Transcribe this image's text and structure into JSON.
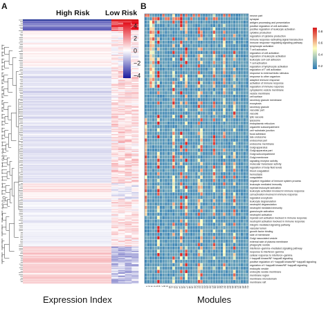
{
  "panelA": {
    "label": "A",
    "columns": [
      "High Risk",
      "Low Risk"
    ],
    "xlabel": "Expression Index",
    "colorbar_ticks": [
      "4",
      "2",
      "0",
      "−2",
      "−4"
    ],
    "colors": {
      "high": "#e3101c",
      "mid": "#ffffff",
      "low": "#1a1a9e"
    }
  },
  "panelB": {
    "label": "B",
    "xlabel": "Modules",
    "module_count": 41,
    "colorbar_ticks": [
      "0.8",
      "0.6",
      "0.4",
      "0.2"
    ],
    "colors": {
      "high": "#d7191c",
      "mid": "#ffffbf",
      "low": "#2c7bb6"
    }
  },
  "chart_data": [
    {
      "type": "heatmap",
      "title": "",
      "xlabel": "Expression Index",
      "columns": [
        "High Risk",
        "Low Risk"
      ],
      "color_range": [
        -4,
        4
      ],
      "colorbar_ticks": [
        4,
        2,
        0,
        -2,
        -4
      ],
      "dendrogram": "left",
      "row_count_approx": 300
    },
    {
      "type": "heatmap",
      "title": "",
      "xlabel": "Modules",
      "x_tick_labels": [
        "1",
        "2",
        "3",
        "4",
        "5",
        "6",
        "7",
        "8",
        "9",
        "10",
        "11",
        "12",
        "13",
        "14",
        "15",
        "16",
        "17",
        "18",
        "19",
        "20",
        "21",
        "22",
        "23",
        "24",
        "25",
        "26",
        "27",
        "28",
        "29",
        "30",
        "31",
        "32",
        "33",
        "34",
        "35",
        "36",
        "37",
        "38",
        "39",
        "40",
        "41"
      ],
      "color_range": [
        0.2,
        0.8
      ],
      "colorbar_ticks": [
        0.8,
        0.6,
        0.4,
        0.2
      ],
      "rows": [
        "neuron part",
        "synapse",
        "antigen processing and presentation",
        "positive regulation of cell activation",
        "positive regulation of leukocyte activation",
        "cytokine production",
        "regulation of cytokine production",
        "immune response−activating signal transduction",
        "immune response−regulating signaling pathway",
        "lymphocyte activation",
        "T cell activation",
        "regulation of cell activation",
        "regulation of leukocyte activation",
        "leukocyte cell−cell adhesion",
        "T cell activation",
        "regulation of lymphocyte activation",
        "regulation of T cell activation",
        "response to external biotic stimulus",
        "response to other organism",
        "adaptive immune response",
        "activation of immune response",
        "regulation of immune response",
        "cytoplasmic vesicle membrane",
        "vesicle membrane",
        "cell surface",
        "secretory granule membrane",
        "exocytosis",
        "secretory granule",
        "vacuolar part",
        "vacuole",
        "lytic vacuole",
        "lysosome",
        "endoplasmic reticulum",
        "organelle subcompartment",
        "cell−substrate junction",
        "focal adhesion",
        "late endosome",
        "endosomal part",
        "endosome membrane",
        "Golgi apparatus",
        "Golgi apparatus part",
        "Golgi subcompartment",
        "Golgi membrane",
        "signaling receptor activity",
        "molecular transducer activity",
        "regulation of body fluid levels",
        "blood coagulation",
        "hemostasis",
        "coagulation",
        "negative regulation of immune system process",
        "leukocyte mediated immunity",
        "myeloid leukocyte activation",
        "leukocyte activation involved in immune response",
        "cell activation involved in immune response",
        "regulated exocytosis",
        "leukocyte degranulation",
        "neutrophil degranulation",
        "neutrophil mediated immunity",
        "granulocyte activation",
        "neutrophil activation",
        "myeloid cell activation involved in immune response",
        "neutrophil activation involved in immune response",
        "integrin−mediated signaling pathway",
        "vascular lumen",
        "growth factor binding",
        "side of membrane",
        "Golgi−associated vesicle",
        "external side of plasma membrane",
        "phagocytic vesicle",
        "interferon−gamma−mediated signaling pathway",
        "response to interferon−gamma",
        "cellular response to interferon−gamma",
        "I−kappaB kinase/NF−kappaB signaling",
        "positive regulation of I−kappaB kinase/NF−kappaB signaling",
        "regulation of I−kappaB kinase/NF−kappaB signaling",
        "endocytic vesicle",
        "endocytic vesicle membrane",
        "membrane region",
        "membrane microdomain",
        "membrane raft"
      ]
    }
  ]
}
